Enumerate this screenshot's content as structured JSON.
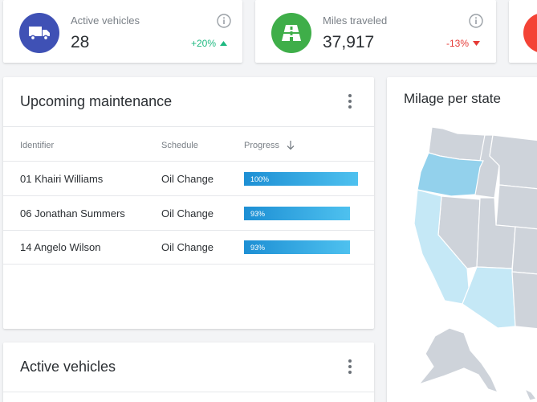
{
  "stats": [
    {
      "label": "Active vehicles",
      "value": "28",
      "change": "+20%",
      "change_color": "#1eb980",
      "trend": "up",
      "icon": "truck-icon",
      "icon_bg": "#3f51b5"
    },
    {
      "label": "Miles traveled",
      "value": "37,917",
      "change": "-13%",
      "change_color": "#e53935",
      "trend": "down",
      "icon": "road-icon",
      "icon_bg": "#3fae49"
    }
  ],
  "third_card_icon_bg": "#f44336",
  "maintenance": {
    "title": "Upcoming maintenance",
    "columns": [
      "Identifier",
      "Schedule",
      "Progress"
    ],
    "rows": [
      {
        "identifier": "01 Khairi Williams",
        "schedule": "Oil Change",
        "progress": 100,
        "progress_label": "100%"
      },
      {
        "identifier": "06 Jonathan Summers",
        "schedule": "Oil Change",
        "progress": 93,
        "progress_label": "93%"
      },
      {
        "identifier": "14 Angelo Wilson",
        "schedule": "Oil Change",
        "progress": 93,
        "progress_label": "93%"
      }
    ]
  },
  "active_vehicles": {
    "title": "Active vehicles"
  },
  "map": {
    "title": "Milage per state",
    "highlighted_states": [
      "Washington",
      "Oregon",
      "California",
      "Arizona"
    ]
  }
}
